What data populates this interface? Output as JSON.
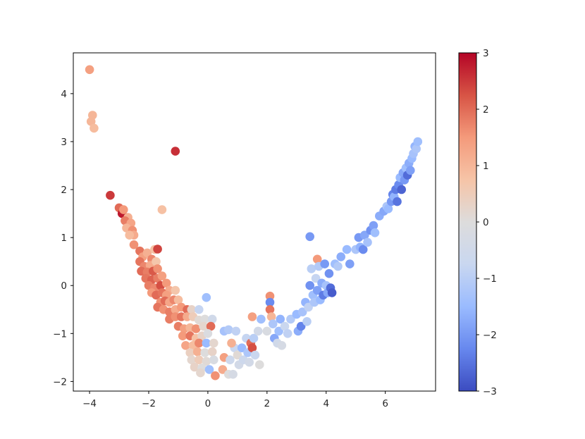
{
  "chart_data": {
    "type": "scatter",
    "title": "",
    "xlabel": "",
    "ylabel": "",
    "xlim": [
      -4.55,
      7.7
    ],
    "ylim": [
      -2.2,
      4.85
    ],
    "x_ticks": [
      -4,
      -2,
      0,
      2,
      4,
      6
    ],
    "x_tick_labels": [
      "−4",
      "−2",
      "0",
      "2",
      "4",
      "6"
    ],
    "y_ticks": [
      -2,
      -1,
      0,
      1,
      2,
      3,
      4
    ],
    "y_tick_labels": [
      "−2",
      "−1",
      "0",
      "1",
      "2",
      "3",
      "4"
    ],
    "grid": false,
    "legend": "none",
    "colormap": "coolwarm",
    "colorbar": {
      "vmin": -3,
      "vmax": 3,
      "ticks": [
        3,
        2,
        1,
        0,
        -1,
        -2,
        -3
      ],
      "tick_labels": [
        "3",
        "2",
        "1",
        "0",
        "−1",
        "−2",
        "−3"
      ],
      "colors": [
        "#3b4cc0",
        "#6788ee",
        "#9abbff",
        "#c9d7f0",
        "#dddcdc",
        "#f6c4a7",
        "#f49a7b",
        "#d75445",
        "#b40426"
      ]
    },
    "points": [
      {
        "x": -4.0,
        "y": 4.5,
        "c": 1.4
      },
      {
        "x": -3.9,
        "y": 3.55,
        "c": 1.0
      },
      {
        "x": -3.95,
        "y": 3.42,
        "c": 1.0
      },
      {
        "x": -3.85,
        "y": 3.28,
        "c": 0.9
      },
      {
        "x": -1.1,
        "y": 2.8,
        "c": 2.6
      },
      {
        "x": -3.3,
        "y": 1.88,
        "c": 2.5
      },
      {
        "x": -3.0,
        "y": 1.62,
        "c": 2.0
      },
      {
        "x": -2.9,
        "y": 1.5,
        "c": 2.8
      },
      {
        "x": -2.85,
        "y": 1.58,
        "c": 1.5
      },
      {
        "x": -2.7,
        "y": 1.42,
        "c": 1.1
      },
      {
        "x": -2.8,
        "y": 1.35,
        "c": 1.8
      },
      {
        "x": -2.6,
        "y": 1.3,
        "c": 1.3
      },
      {
        "x": -2.75,
        "y": 1.2,
        "c": 1.0
      },
      {
        "x": -2.55,
        "y": 1.15,
        "c": 1.6
      },
      {
        "x": -2.5,
        "y": 1.05,
        "c": 1.2
      },
      {
        "x": -2.65,
        "y": 1.05,
        "c": 0.9
      },
      {
        "x": -1.55,
        "y": 1.58,
        "c": 0.8
      },
      {
        "x": -2.5,
        "y": 0.85,
        "c": 1.6
      },
      {
        "x": -2.3,
        "y": 0.72,
        "c": 1.9
      },
      {
        "x": -2.2,
        "y": 0.6,
        "c": 1.4
      },
      {
        "x": -2.05,
        "y": 0.68,
        "c": 1.1
      },
      {
        "x": -1.8,
        "y": 0.75,
        "c": 0.8
      },
      {
        "x": -1.7,
        "y": 0.76,
        "c": 2.4
      },
      {
        "x": -1.9,
        "y": 0.55,
        "c": 1.7
      },
      {
        "x": -2.3,
        "y": 0.5,
        "c": 1.9
      },
      {
        "x": -2.15,
        "y": 0.4,
        "c": 1.7
      },
      {
        "x": -1.95,
        "y": 0.42,
        "c": 1.2
      },
      {
        "x": -1.75,
        "y": 0.5,
        "c": 0.7
      },
      {
        "x": -2.25,
        "y": 0.3,
        "c": 2.0
      },
      {
        "x": -2.05,
        "y": 0.28,
        "c": 1.8
      },
      {
        "x": -1.85,
        "y": 0.3,
        "c": 2.2
      },
      {
        "x": -1.7,
        "y": 0.35,
        "c": 1.6
      },
      {
        "x": -2.1,
        "y": 0.15,
        "c": 1.9
      },
      {
        "x": -1.9,
        "y": 0.12,
        "c": 2.1
      },
      {
        "x": -1.7,
        "y": 0.15,
        "c": 1.8
      },
      {
        "x": -1.55,
        "y": 0.2,
        "c": 1.4
      },
      {
        "x": -2.0,
        "y": 0.0,
        "c": 1.8
      },
      {
        "x": -1.8,
        "y": -0.05,
        "c": 1.7
      },
      {
        "x": -1.6,
        "y": 0.0,
        "c": 2.3
      },
      {
        "x": -1.4,
        "y": 0.05,
        "c": 1.5
      },
      {
        "x": -1.3,
        "y": -0.1,
        "c": 1.2
      },
      {
        "x": -1.1,
        "y": -0.1,
        "c": 0.7
      },
      {
        "x": -1.9,
        "y": -0.15,
        "c": 1.5
      },
      {
        "x": -1.75,
        "y": -0.2,
        "c": 2.0
      },
      {
        "x": -1.55,
        "y": -0.15,
        "c": 1.9
      },
      {
        "x": -1.4,
        "y": -0.2,
        "c": 1.4
      },
      {
        "x": -1.6,
        "y": -0.35,
        "c": 1.6
      },
      {
        "x": -1.45,
        "y": -0.32,
        "c": 2.0
      },
      {
        "x": -1.3,
        "y": -0.35,
        "c": 1.3
      },
      {
        "x": -1.15,
        "y": -0.3,
        "c": 1.7
      },
      {
        "x": -1.0,
        "y": -0.3,
        "c": 0.9
      },
      {
        "x": -1.7,
        "y": -0.45,
        "c": 1.9
      },
      {
        "x": -1.5,
        "y": -0.5,
        "c": 1.6
      },
      {
        "x": -1.3,
        "y": -0.55,
        "c": 1.8
      },
      {
        "x": -1.1,
        "y": -0.5,
        "c": 1.2
      },
      {
        "x": -0.9,
        "y": -0.45,
        "c": 1.5
      },
      {
        "x": -0.7,
        "y": -0.5,
        "c": 2.0
      },
      {
        "x": -0.55,
        "y": -0.5,
        "c": 0.3
      },
      {
        "x": -0.3,
        "y": -0.5,
        "c": -0.8
      },
      {
        "x": -0.05,
        "y": -0.25,
        "c": -1.4
      },
      {
        "x": -1.3,
        "y": -0.7,
        "c": 1.8
      },
      {
        "x": -1.1,
        "y": -0.65,
        "c": 1.6
      },
      {
        "x": -0.9,
        "y": -0.65,
        "c": 1.9
      },
      {
        "x": -0.7,
        "y": -0.65,
        "c": 1.2
      },
      {
        "x": -0.5,
        "y": -0.65,
        "c": 0.5
      },
      {
        "x": -0.3,
        "y": -0.72,
        "c": 0.1
      },
      {
        "x": -0.1,
        "y": -0.7,
        "c": 0.0
      },
      {
        "x": 0.15,
        "y": -0.7,
        "c": -0.5
      },
      {
        "x": -1.0,
        "y": -0.85,
        "c": 1.8
      },
      {
        "x": -0.8,
        "y": -0.9,
        "c": 1.4
      },
      {
        "x": -0.6,
        "y": -0.88,
        "c": 1.0
      },
      {
        "x": -0.4,
        "y": -0.9,
        "c": 1.6
      },
      {
        "x": -0.15,
        "y": -0.85,
        "c": 0.2
      },
      {
        "x": 0.1,
        "y": -0.85,
        "c": 2.0
      },
      {
        "x": -0.85,
        "y": -1.05,
        "c": 1.5
      },
      {
        "x": -0.6,
        "y": -1.05,
        "c": 1.9
      },
      {
        "x": -0.4,
        "y": -1.1,
        "c": 0.8
      },
      {
        "x": -0.2,
        "y": -1.05,
        "c": 0.3
      },
      {
        "x": 0.0,
        "y": -1.0,
        "c": -0.1
      },
      {
        "x": -0.75,
        "y": -1.25,
        "c": 1.3
      },
      {
        "x": -0.5,
        "y": -1.25,
        "c": 0.9
      },
      {
        "x": -0.3,
        "y": -1.2,
        "c": 1.7
      },
      {
        "x": -0.05,
        "y": -1.2,
        "c": -1.5
      },
      {
        "x": 0.2,
        "y": -1.2,
        "c": 0.2
      },
      {
        "x": -0.6,
        "y": -1.4,
        "c": 0.4
      },
      {
        "x": -0.35,
        "y": -1.38,
        "c": 1.1
      },
      {
        "x": -0.1,
        "y": -1.4,
        "c": 0.0
      },
      {
        "x": 0.15,
        "y": -1.38,
        "c": 0.3
      },
      {
        "x": -0.55,
        "y": -1.55,
        "c": 0.2
      },
      {
        "x": -0.3,
        "y": -1.55,
        "c": 0.5
      },
      {
        "x": -0.05,
        "y": -1.58,
        "c": 0.1
      },
      {
        "x": 0.2,
        "y": -1.55,
        "c": -0.2
      },
      {
        "x": -0.45,
        "y": -1.7,
        "c": 0.3
      },
      {
        "x": -0.2,
        "y": -1.72,
        "c": 0.0
      },
      {
        "x": 0.05,
        "y": -1.75,
        "c": -1.4
      },
      {
        "x": -0.25,
        "y": -1.82,
        "c": 0.2
      },
      {
        "x": 0.25,
        "y": -1.88,
        "c": 1.6
      },
      {
        "x": 0.5,
        "y": -1.75,
        "c": 1.2
      },
      {
        "x": 0.55,
        "y": -1.5,
        "c": 1.4
      },
      {
        "x": 0.7,
        "y": -1.85,
        "c": 0.0
      },
      {
        "x": 0.75,
        "y": -1.55,
        "c": -0.6
      },
      {
        "x": 0.85,
        "y": -1.85,
        "c": -0.3
      },
      {
        "x": 0.9,
        "y": -1.3,
        "c": -0.7
      },
      {
        "x": 0.8,
        "y": -1.2,
        "c": 1.1
      },
      {
        "x": 1.0,
        "y": -1.45,
        "c": 0.1
      },
      {
        "x": 1.05,
        "y": -1.65,
        "c": -0.4
      },
      {
        "x": 1.15,
        "y": -1.3,
        "c": -1.5
      },
      {
        "x": 1.2,
        "y": -1.55,
        "c": -0.6
      },
      {
        "x": 1.3,
        "y": -1.1,
        "c": -0.8
      },
      {
        "x": 1.35,
        "y": -1.4,
        "c": -1.2
      },
      {
        "x": 1.4,
        "y": -1.6,
        "c": -0.4
      },
      {
        "x": 1.45,
        "y": -1.2,
        "c": 2.0
      },
      {
        "x": 1.5,
        "y": -1.3,
        "c": 2.3
      },
      {
        "x": 1.55,
        "y": -1.1,
        "c": -1.0
      },
      {
        "x": 1.6,
        "y": -1.45,
        "c": -0.7
      },
      {
        "x": 1.75,
        "y": -1.65,
        "c": 0.0
      },
      {
        "x": 0.55,
        "y": -0.95,
        "c": -1.3
      },
      {
        "x": 0.7,
        "y": -0.92,
        "c": -1.1
      },
      {
        "x": 0.95,
        "y": -0.95,
        "c": -0.9
      },
      {
        "x": 1.5,
        "y": -0.65,
        "c": 1.4
      },
      {
        "x": 1.7,
        "y": -0.95,
        "c": -0.4
      },
      {
        "x": 1.8,
        "y": -0.7,
        "c": -1.4
      },
      {
        "x": 2.0,
        "y": -0.95,
        "c": -0.2
      },
      {
        "x": 2.1,
        "y": -0.22,
        "c": 1.6
      },
      {
        "x": 2.1,
        "y": -0.35,
        "c": -2.2
      },
      {
        "x": 2.1,
        "y": -0.5,
        "c": 1.9
      },
      {
        "x": 2.15,
        "y": -0.65,
        "c": 1.0
      },
      {
        "x": 2.2,
        "y": -0.8,
        "c": -1.2
      },
      {
        "x": 2.25,
        "y": -1.1,
        "c": -1.8
      },
      {
        "x": 2.35,
        "y": -1.2,
        "c": -0.5
      },
      {
        "x": 2.4,
        "y": -0.95,
        "c": -1.4
      },
      {
        "x": 2.45,
        "y": -0.7,
        "c": -1.6
      },
      {
        "x": 2.6,
        "y": -0.85,
        "c": -0.7
      },
      {
        "x": 2.5,
        "y": -1.25,
        "c": -0.3
      },
      {
        "x": 2.7,
        "y": -1.0,
        "c": -0.9
      },
      {
        "x": 2.8,
        "y": -0.7,
        "c": -1.1
      },
      {
        "x": 3.0,
        "y": -0.6,
        "c": -1.5
      },
      {
        "x": 3.05,
        "y": -0.95,
        "c": -1.7
      },
      {
        "x": 3.15,
        "y": -0.85,
        "c": -2.3
      },
      {
        "x": 3.2,
        "y": -0.55,
        "c": -1.3
      },
      {
        "x": 3.3,
        "y": -0.35,
        "c": -1.6
      },
      {
        "x": 3.35,
        "y": -0.75,
        "c": -1.0
      },
      {
        "x": 3.4,
        "y": -0.45,
        "c": -0.9
      },
      {
        "x": 3.45,
        "y": 1.02,
        "c": -2.0
      },
      {
        "x": 3.45,
        "y": 0.0,
        "c": -2.1
      },
      {
        "x": 3.5,
        "y": 0.35,
        "c": -1.0
      },
      {
        "x": 3.55,
        "y": -0.2,
        "c": -1.4
      },
      {
        "x": 3.6,
        "y": -0.35,
        "c": -1.2
      },
      {
        "x": 3.65,
        "y": 0.15,
        "c": -0.8
      },
      {
        "x": 3.7,
        "y": 0.55,
        "c": 1.5
      },
      {
        "x": 3.7,
        "y": -0.1,
        "c": -1.9
      },
      {
        "x": 3.75,
        "y": 0.4,
        "c": -1.1
      },
      {
        "x": 3.8,
        "y": -0.3,
        "c": -1.5
      },
      {
        "x": 3.85,
        "y": 0.05,
        "c": -1.7
      },
      {
        "x": 3.9,
        "y": -0.2,
        "c": -2.4
      },
      {
        "x": 3.95,
        "y": 0.45,
        "c": -2.0
      },
      {
        "x": 4.0,
        "y": 0.0,
        "c": -1.3
      },
      {
        "x": 4.05,
        "y": -0.15,
        "c": -1.8
      },
      {
        "x": 4.1,
        "y": 0.25,
        "c": -2.1
      },
      {
        "x": 4.15,
        "y": -0.05,
        "c": -2.6
      },
      {
        "x": 4.2,
        "y": -0.15,
        "c": -2.8
      },
      {
        "x": 4.3,
        "y": 0.45,
        "c": -1.4
      },
      {
        "x": 4.4,
        "y": 0.4,
        "c": -1.1
      },
      {
        "x": 4.5,
        "y": 0.6,
        "c": -1.7
      },
      {
        "x": 4.7,
        "y": 0.75,
        "c": -1.5
      },
      {
        "x": 4.8,
        "y": 0.45,
        "c": -1.9
      },
      {
        "x": 5.0,
        "y": 0.75,
        "c": -1.2
      },
      {
        "x": 5.1,
        "y": 1.0,
        "c": -2.0
      },
      {
        "x": 5.15,
        "y": 0.8,
        "c": -1.6
      },
      {
        "x": 5.25,
        "y": 0.75,
        "c": -2.2
      },
      {
        "x": 5.3,
        "y": 1.05,
        "c": -1.8
      },
      {
        "x": 5.4,
        "y": 0.9,
        "c": -1.3
      },
      {
        "x": 5.5,
        "y": 1.15,
        "c": -2.1
      },
      {
        "x": 5.6,
        "y": 1.25,
        "c": -1.9
      },
      {
        "x": 5.65,
        "y": 1.1,
        "c": -1.4
      },
      {
        "x": 5.8,
        "y": 1.45,
        "c": -1.7
      },
      {
        "x": 5.95,
        "y": 1.55,
        "c": -1.8
      },
      {
        "x": 6.05,
        "y": 1.65,
        "c": -1.2
      },
      {
        "x": 6.1,
        "y": 1.6,
        "c": -1.5
      },
      {
        "x": 6.2,
        "y": 1.75,
        "c": -2.0
      },
      {
        "x": 6.25,
        "y": 1.9,
        "c": -2.3
      },
      {
        "x": 6.3,
        "y": 1.85,
        "c": -1.6
      },
      {
        "x": 6.35,
        "y": 2.0,
        "c": -2.4
      },
      {
        "x": 6.4,
        "y": 1.75,
        "c": -2.5
      },
      {
        "x": 6.45,
        "y": 2.1,
        "c": -2.2
      },
      {
        "x": 6.5,
        "y": 2.25,
        "c": -1.5
      },
      {
        "x": 6.55,
        "y": 2.0,
        "c": -2.7
      },
      {
        "x": 6.6,
        "y": 2.35,
        "c": -1.8
      },
      {
        "x": 6.65,
        "y": 2.2,
        "c": -2.0
      },
      {
        "x": 6.7,
        "y": 2.45,
        "c": -1.4
      },
      {
        "x": 6.75,
        "y": 2.3,
        "c": -2.6
      },
      {
        "x": 6.8,
        "y": 2.55,
        "c": -1.7
      },
      {
        "x": 6.85,
        "y": 2.4,
        "c": -1.9
      },
      {
        "x": 6.9,
        "y": 2.65,
        "c": -1.5
      },
      {
        "x": 6.95,
        "y": 2.75,
        "c": -1.3
      },
      {
        "x": 7.0,
        "y": 2.9,
        "c": -1.6
      },
      {
        "x": 7.05,
        "y": 2.85,
        "c": -1.2
      },
      {
        "x": 7.1,
        "y": 3.0,
        "c": -1.4
      }
    ]
  }
}
